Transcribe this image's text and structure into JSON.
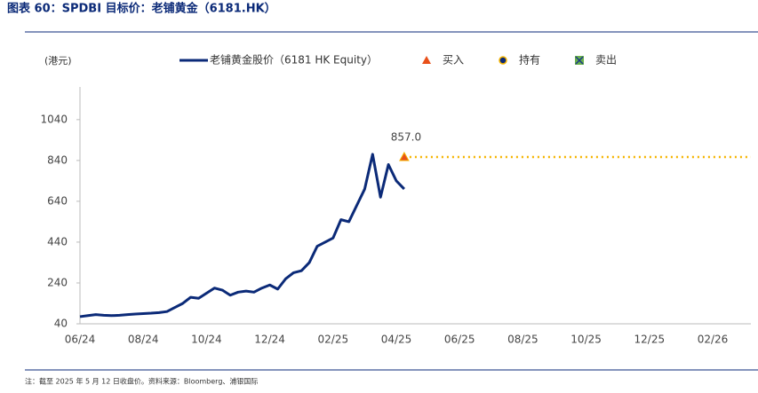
{
  "chart_data": {
    "type": "line",
    "title": "图表 60：SPDBI 目标价：老铺黄金（6181.HK）",
    "y_label": "(港元)",
    "footnote": "注：截至 2025 年 5 月 12 日收盘价。资料来源：Bloomberg、浦银国际",
    "categories": [
      "06/24",
      null,
      null,
      null,
      null,
      null,
      null,
      null,
      "08/24",
      null,
      null,
      null,
      null,
      null,
      null,
      null,
      "10/24",
      null,
      null,
      null,
      null,
      null,
      null,
      null,
      "12/24",
      null,
      null,
      null,
      null,
      null,
      null,
      null,
      "02/25",
      null,
      null,
      null,
      null,
      null,
      null,
      null,
      "04/25",
      null,
      null,
      null,
      null,
      null,
      null,
      null,
      "06/25",
      null,
      null,
      null,
      null,
      null,
      null,
      null,
      "08/25",
      null,
      null,
      null,
      null,
      null,
      null,
      null,
      "10/25",
      null,
      null,
      null,
      null,
      null,
      null,
      null,
      "12/25",
      null,
      null,
      null,
      null,
      null,
      null,
      null,
      "02/26",
      null,
      null,
      null,
      null
    ],
    "series": [
      {
        "name": "老铺黄金股价（6181 HK Equity）",
        "color": "#0b2a78",
        "values": [
          75,
          80,
          85,
          82,
          80,
          82,
          85,
          88,
          90,
          92,
          95,
          100,
          120,
          140,
          170,
          165,
          190,
          215,
          205,
          180,
          195,
          200,
          195,
          215,
          230,
          210,
          260,
          290,
          300,
          340,
          420,
          440,
          460,
          550,
          540,
          620,
          700,
          870,
          660,
          820,
          740,
          700,
          null,
          null,
          null,
          null,
          null,
          null,
          null,
          null,
          null,
          null,
          null,
          null,
          null,
          null,
          null,
          null,
          null,
          null,
          null,
          null,
          null,
          null,
          null,
          null,
          null,
          null,
          null,
          null,
          null,
          null,
          null,
          null,
          null,
          null,
          null,
          null,
          null,
          null,
          null,
          null,
          null,
          null,
          null
        ]
      }
    ],
    "target": {
      "value": 857,
      "label": "857.0",
      "start": 41,
      "color": "#f5b400"
    },
    "markers": [
      {
        "name": "买入",
        "color": "#e8501a"
      },
      {
        "name": "持有",
        "color": "#0b2a78"
      },
      {
        "name": "卖出",
        "color": "#6ab04c"
      }
    ],
    "ylim": [
      40,
      1200
    ],
    "yticks": [
      40,
      240,
      440,
      640,
      840,
      1040
    ]
  }
}
